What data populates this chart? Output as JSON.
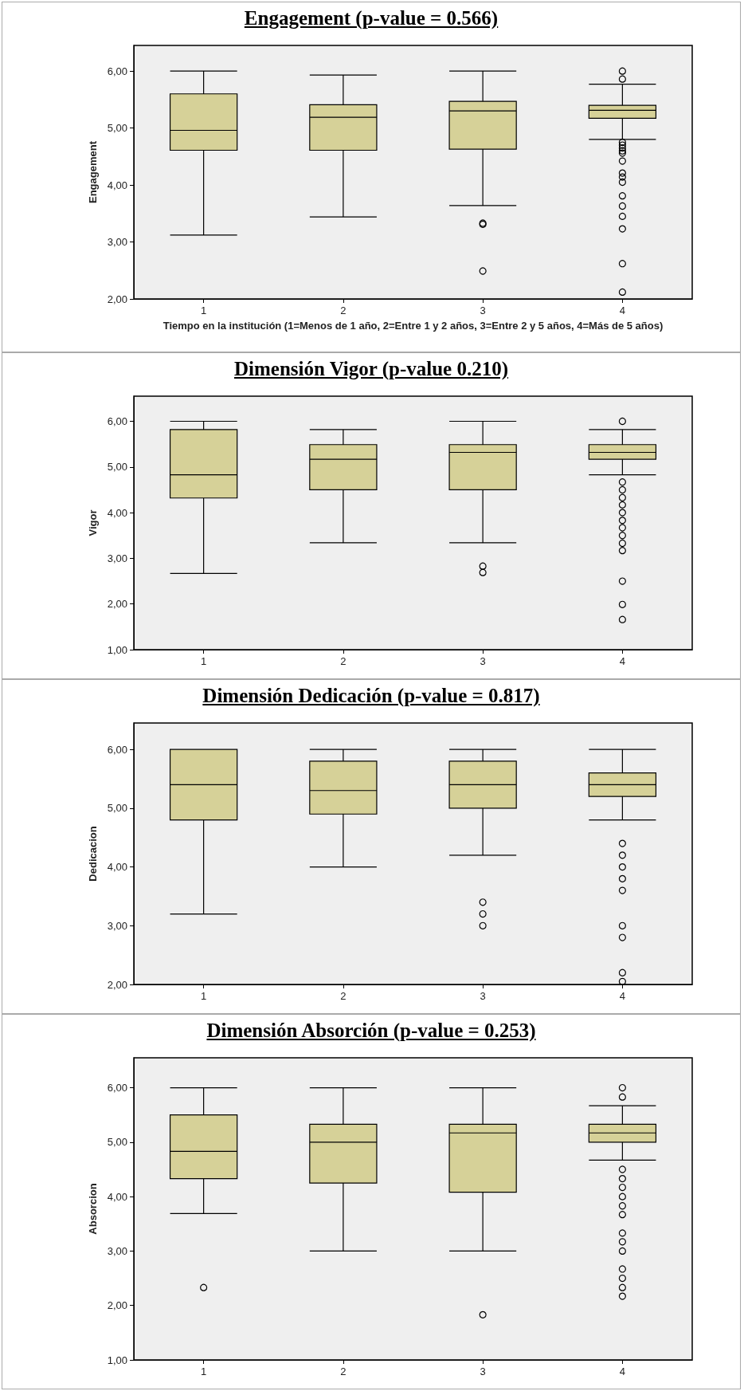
{
  "chart_data": [
    {
      "type": "box",
      "title": "Engagement (p-value = 0.566)",
      "xlabel": "Tiempo en la institución (1=Menos de 1 año, 2=Entre 1 y 2 años, 3=Entre 2 y 5 años, 4=Más de 5 años)",
      "ylabel": "Engagement",
      "categories": [
        "1",
        "2",
        "3",
        "4"
      ],
      "color": "#d6d198",
      "ylim": [
        2,
        6.45
      ],
      "yticks": [
        {
          "value": 2,
          "label": "2,00"
        },
        {
          "value": 3,
          "label": "3,00"
        },
        {
          "value": 4,
          "label": "4,00"
        },
        {
          "value": 5,
          "label": "5,00"
        },
        {
          "value": 6,
          "label": "6,00"
        }
      ],
      "grid": false,
      "marker": "circle",
      "boxes": [
        {
          "low": 3.12,
          "q1": 4.61,
          "median": 4.96,
          "q3": 5.6,
          "high": 6.0
        },
        {
          "low": 3.44,
          "q1": 4.61,
          "median": 5.19,
          "q3": 5.41,
          "high": 5.93
        },
        {
          "low": 3.64,
          "q1": 4.63,
          "median": 5.3,
          "q3": 5.47,
          "high": 6.0,
          "outliers": [
            3.33,
            3.31,
            2.49
          ]
        },
        {
          "low": 4.8,
          "q1": 5.17,
          "median": 5.31,
          "q3": 5.4,
          "high": 5.77,
          "outliers": [
            6.0,
            5.86,
            4.75,
            4.7,
            4.65,
            4.6,
            4.56,
            4.42,
            4.21,
            4.14,
            4.05,
            3.81,
            3.63,
            3.45,
            3.23,
            2.62,
            2.12
          ]
        }
      ]
    },
    {
      "type": "box",
      "title": "Dimensión Vigor (p-value 0.210)",
      "ylabel": "Vigor",
      "categories": [
        "1",
        "2",
        "3",
        "4"
      ],
      "color": "#d6d198",
      "ylim": [
        1,
        6.55
      ],
      "yticks": [
        {
          "value": 1,
          "label": "1,00"
        },
        {
          "value": 2,
          "label": "2,00"
        },
        {
          "value": 3,
          "label": "3,00"
        },
        {
          "value": 4,
          "label": "4,00"
        },
        {
          "value": 5,
          "label": "5,00"
        },
        {
          "value": 6,
          "label": "6,00"
        }
      ],
      "grid": false,
      "marker": "circle",
      "boxes": [
        {
          "low": 2.67,
          "q1": 4.32,
          "median": 4.83,
          "q3": 5.82,
          "high": 6.0
        },
        {
          "low": 3.34,
          "q1": 4.5,
          "median": 5.17,
          "q3": 5.49,
          "high": 5.82
        },
        {
          "low": 3.34,
          "q1": 4.5,
          "median": 5.32,
          "q3": 5.49,
          "high": 6.0,
          "outliers": [
            2.83,
            2.69
          ]
        },
        {
          "low": 4.83,
          "q1": 5.17,
          "median": 5.32,
          "q3": 5.49,
          "high": 5.82,
          "outliers": [
            6.0,
            4.67,
            4.5,
            4.33,
            4.17,
            4.0,
            3.83,
            3.67,
            3.5,
            3.33,
            3.17,
            2.5,
            1.99,
            1.66
          ]
        }
      ]
    },
    {
      "type": "box",
      "title": "Dimensión Dedicación (p-value = 0.817)",
      "ylabel": "Dedicacion",
      "categories": [
        "1",
        "2",
        "3",
        "4"
      ],
      "color": "#d6d198",
      "ylim": [
        2,
        6.45
      ],
      "yticks": [
        {
          "value": 2,
          "label": "2,00"
        },
        {
          "value": 3,
          "label": "3,00"
        },
        {
          "value": 4,
          "label": "4,00"
        },
        {
          "value": 5,
          "label": "5,00"
        },
        {
          "value": 6,
          "label": "6,00"
        }
      ],
      "grid": false,
      "marker": "circle",
      "boxes": [
        {
          "low": 3.2,
          "q1": 4.8,
          "median": 5.4,
          "q3": 6.0,
          "high": 6.0
        },
        {
          "low": 4.0,
          "q1": 4.9,
          "median": 5.3,
          "q3": 5.8,
          "high": 6.0
        },
        {
          "low": 4.2,
          "q1": 5.0,
          "median": 5.4,
          "q3": 5.8,
          "high": 6.0,
          "outliers": [
            3.4,
            3.2,
            3.0
          ]
        },
        {
          "low": 4.8,
          "q1": 5.2,
          "median": 5.4,
          "q3": 5.6,
          "high": 6.0,
          "outliers": [
            4.4,
            4.2,
            4.0,
            3.8,
            3.6,
            3.0,
            2.8,
            2.2,
            2.05
          ]
        }
      ]
    },
    {
      "type": "box",
      "title": "Dimensión Absorción (p-value = 0.253)",
      "ylabel": "Absorcion",
      "categories": [
        "1",
        "2",
        "3",
        "4"
      ],
      "color": "#d6d198",
      "ylim": [
        1,
        6.55
      ],
      "yticks": [
        {
          "value": 1,
          "label": "1,00"
        },
        {
          "value": 2,
          "label": "2,00"
        },
        {
          "value": 3,
          "label": "3,00"
        },
        {
          "value": 4,
          "label": "4,00"
        },
        {
          "value": 5,
          "label": "5,00"
        },
        {
          "value": 6,
          "label": "6,00"
        }
      ],
      "grid": false,
      "marker": "circle",
      "boxes": [
        {
          "low": 3.69,
          "q1": 4.33,
          "median": 4.83,
          "q3": 5.5,
          "high": 6.0,
          "outliers": [
            2.33
          ]
        },
        {
          "low": 3.0,
          "q1": 4.25,
          "median": 5.0,
          "q3": 5.33,
          "high": 6.0
        },
        {
          "low": 3.0,
          "q1": 4.08,
          "median": 5.17,
          "q3": 5.33,
          "high": 6.0,
          "outliers": [
            1.83
          ]
        },
        {
          "low": 4.67,
          "q1": 5.0,
          "median": 5.17,
          "q3": 5.33,
          "high": 5.67,
          "outliers": [
            6.0,
            5.83,
            4.5,
            4.33,
            4.17,
            4.0,
            3.83,
            3.67,
            3.33,
            3.17,
            3.0,
            2.67,
            2.5,
            2.33,
            2.17
          ]
        }
      ]
    }
  ]
}
